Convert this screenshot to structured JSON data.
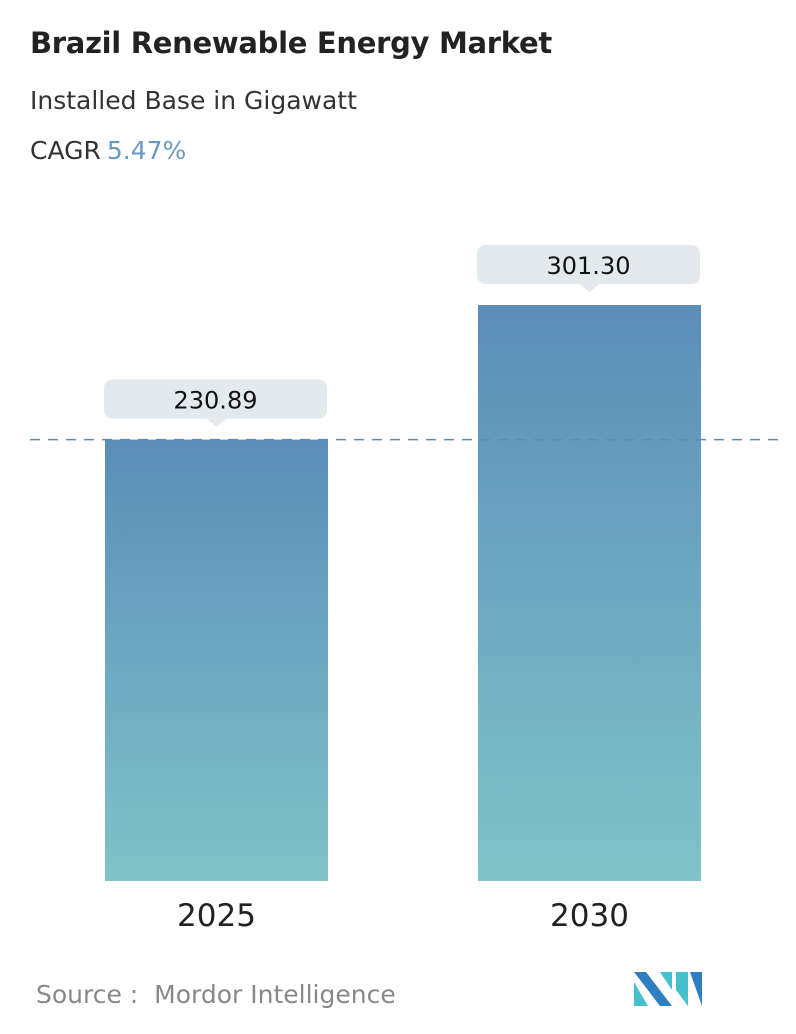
{
  "header": {
    "title": "Brazil Renewable Energy Market",
    "subtitle": "Installed Base in Gigawatt",
    "cagr_label": "CAGR",
    "cagr_value": "5.47%"
  },
  "chart_data": {
    "type": "bar",
    "categories": [
      "2025",
      "2030"
    ],
    "values": [
      230.89,
      301.3
    ],
    "value_labels": [
      "230.89",
      "301.30"
    ],
    "ylim": [
      0,
      301.3
    ],
    "reference_line": 230.89,
    "grid": false,
    "colors": {
      "bar_top": "#5b8db8",
      "bar_bottom": "#80c3c8",
      "label_box": "#e3eaed",
      "dash": "#5b8db8"
    }
  },
  "footer": {
    "source_label": "Source :",
    "source_name": "Mordor Intelligence",
    "logo_text": "Mordor Intelligence"
  }
}
